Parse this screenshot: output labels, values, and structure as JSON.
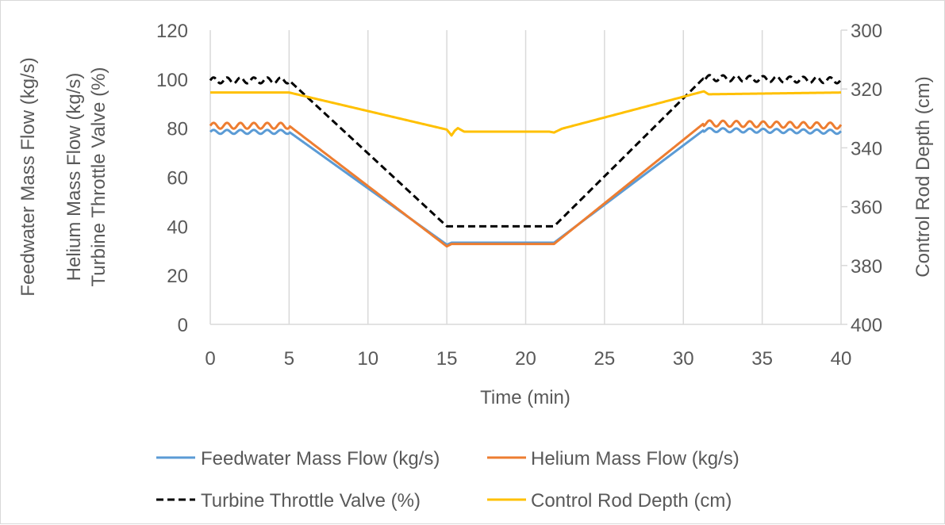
{
  "chart_data": {
    "type": "line",
    "title": "",
    "xlabel": "Time (min)",
    "ylabel_left": [
      "Feedwater Mass Flow (kg/s)",
      "Helium Mass Flow (kg/s)",
      "Turbine Throttle Valve (%)"
    ],
    "ylabel_right": "Control Rod Depth (cm)",
    "xlim": [
      0,
      40
    ],
    "ylim_left": [
      0,
      120
    ],
    "ylim_right": [
      300,
      400
    ],
    "right_axis_reversed": true,
    "x_ticks": [
      "0",
      "5",
      "10",
      "15",
      "20",
      "25",
      "30",
      "35",
      "40"
    ],
    "y_left_ticks": [
      "0",
      "20",
      "40",
      "60",
      "80",
      "100",
      "120"
    ],
    "y_right_ticks": [
      "300",
      "320",
      "340",
      "360",
      "380",
      "400"
    ],
    "grid": "vertical",
    "legend_position": "bottom",
    "series": [
      {
        "name": "Feedwater Mass Flow (kg/s)",
        "axis": "left",
        "color": "#5b9bd5",
        "dash": "solid",
        "oscillation": 0.8,
        "points": [
          [
            0,
            78.5
          ],
          [
            5,
            78.5
          ],
          [
            15,
            32.5
          ],
          [
            15.3,
            33.3
          ],
          [
            21.8,
            33.3
          ],
          [
            31.3,
            79.3
          ],
          [
            40,
            78.5
          ]
        ]
      },
      {
        "name": "Helium Mass Flow (kg/s)",
        "axis": "left",
        "color": "#ed7d31",
        "dash": "solid",
        "oscillation": 1.2,
        "points": [
          [
            0,
            81
          ],
          [
            5,
            81
          ],
          [
            15,
            31.8
          ],
          [
            15.3,
            32.8
          ],
          [
            21.8,
            32.8
          ],
          [
            31.3,
            82
          ],
          [
            40,
            81
          ]
        ]
      },
      {
        "name": "Turbine Throttle Valve (%)",
        "axis": "left",
        "color": "#000000",
        "dash": "dashed",
        "oscillation": 1.2,
        "points": [
          [
            0,
            99.5
          ],
          [
            5,
            99.5
          ],
          [
            15,
            40
          ],
          [
            21.8,
            40
          ],
          [
            31.3,
            100.5
          ],
          [
            40,
            99.5
          ]
        ]
      },
      {
        "name": "Control Rod Depth (cm)",
        "axis": "right",
        "color": "#ffc000",
        "dash": "solid",
        "oscillation": 0,
        "points": [
          [
            0,
            321.2
          ],
          [
            5,
            321.2
          ],
          [
            15,
            333.8
          ],
          [
            15.3,
            335.8
          ],
          [
            15.5,
            334.2
          ],
          [
            15.7,
            333.3
          ],
          [
            16.1,
            334.5
          ],
          [
            21.5,
            334.5
          ],
          [
            21.8,
            334.8
          ],
          [
            22.3,
            333.5
          ],
          [
            31.3,
            320.8
          ],
          [
            31.6,
            321.8
          ],
          [
            40,
            321.2
          ]
        ]
      }
    ]
  }
}
